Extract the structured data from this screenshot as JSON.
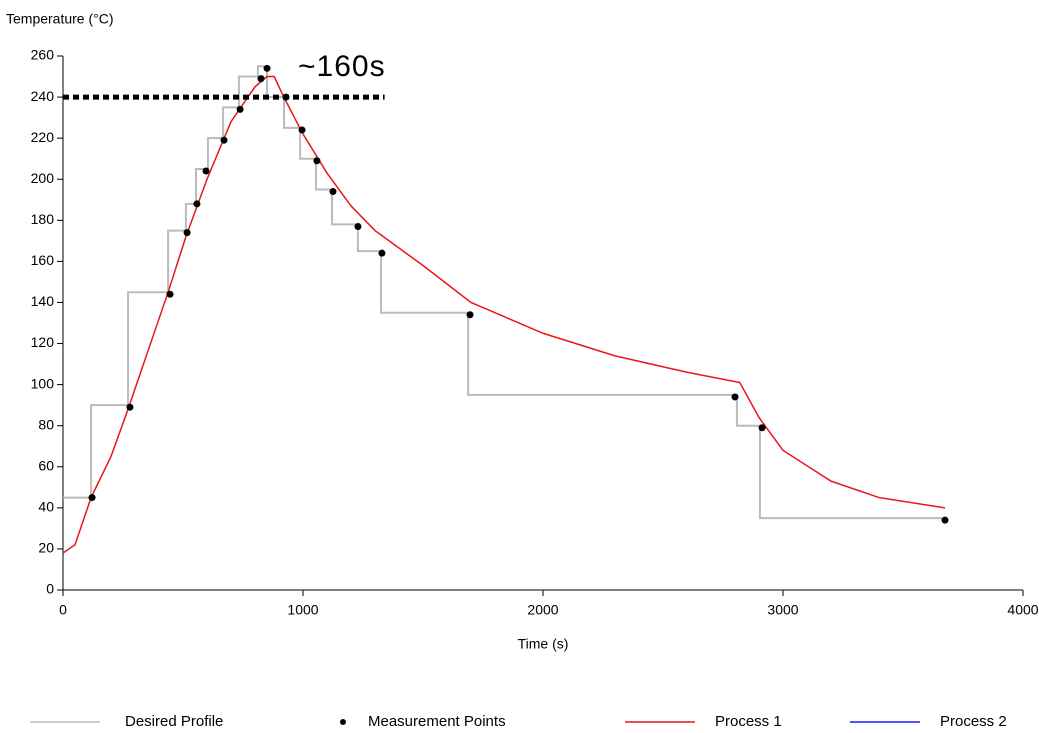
{
  "chart_data": {
    "type": "line",
    "y_label": "Temperature (°C)",
    "x_label": "Time (s)",
    "xlim": [
      0,
      4000
    ],
    "xticks": [
      0,
      1000,
      2000,
      3000,
      4000
    ],
    "ylim": [
      0,
      260
    ],
    "yticks": [
      0,
      20,
      40,
      60,
      80,
      100,
      120,
      140,
      160,
      180,
      200,
      220,
      240,
      260
    ],
    "grid": false,
    "legend": "bottom",
    "annotation": "~160s",
    "reference_line": {
      "y": 240,
      "x": [
        0,
        1340
      ],
      "color": "#000000"
    },
    "series": [
      {
        "name": "Desired Profile",
        "kind": "line",
        "color": "#bbbbbb",
        "x": [
          0,
          117,
          117,
          271,
          271,
          438,
          438,
          512,
          512,
          554,
          554,
          604,
          604,
          667,
          667,
          733,
          733,
          812,
          812,
          850,
          850,
          921,
          921,
          988,
          988,
          1054,
          1054,
          1121,
          1121,
          1229,
          1229,
          1325,
          1325,
          1688,
          1688,
          2808,
          2808,
          2904,
          2904,
          3675
        ],
        "values": [
          45,
          45,
          90,
          90,
          145,
          145,
          175,
          175,
          188,
          188,
          205,
          205,
          220,
          220,
          235,
          235,
          250,
          250,
          255,
          255,
          240,
          240,
          225,
          225,
          210,
          210,
          195,
          195,
          178,
          178,
          165,
          165,
          135,
          135,
          95,
          95,
          80,
          80,
          35,
          35
        ]
      },
      {
        "name": "Measurement Points",
        "kind": "scatter",
        "color": "#000000",
        "x": [
          121,
          279,
          446,
          517,
          558,
          596,
          671,
          738,
          825,
          850,
          929,
          996,
          1058,
          1125,
          1229,
          1329,
          1696,
          2800,
          2913,
          3675
        ],
        "values": [
          45,
          89,
          144,
          174,
          188,
          204,
          219,
          234,
          249,
          254,
          240,
          224,
          209,
          194,
          177,
          164,
          134,
          94,
          79,
          34
        ]
      },
      {
        "name": "Process 1",
        "kind": "line",
        "color": "#e8161b",
        "x": [
          0,
          50,
          117,
          200,
          271,
          350,
          438,
          512,
          600,
          700,
          800,
          850,
          880,
          920,
          1000,
          1100,
          1200,
          1300,
          1500,
          1700,
          2000,
          2300,
          2600,
          2820,
          2900,
          3000,
          3200,
          3400,
          3675
        ],
        "values": [
          18,
          22,
          45,
          65,
          88,
          115,
          145,
          172,
          200,
          228,
          245,
          250,
          250,
          240,
          222,
          203,
          187,
          175,
          158,
          140,
          125,
          114,
          106,
          101,
          84,
          68,
          53,
          45,
          40
        ]
      },
      {
        "name": "Process 2",
        "kind": "line",
        "color": "#1a1aff",
        "x": [],
        "values": []
      }
    ]
  }
}
